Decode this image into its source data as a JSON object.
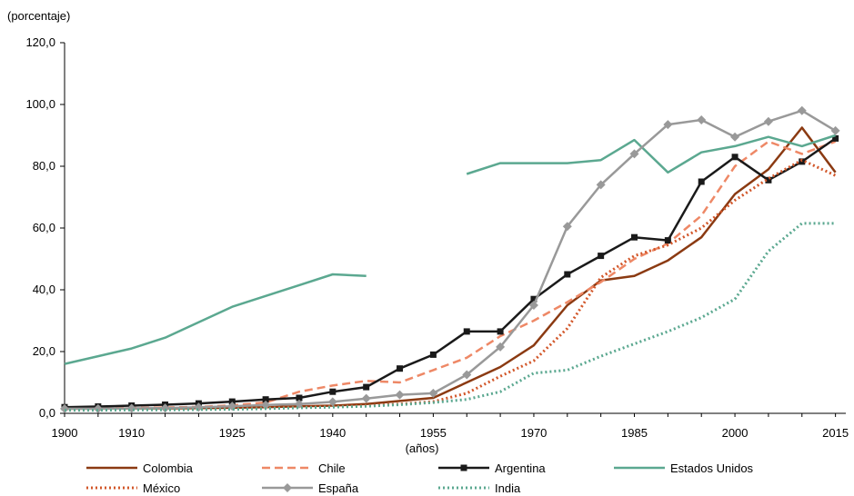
{
  "chart_data": {
    "type": "line",
    "ylabel": "(porcentaje)",
    "xlabel": "(años)",
    "ylim": [
      0,
      120
    ],
    "yticks": [
      "0,0",
      "20,0",
      "40,0",
      "60,0",
      "80,0",
      "100,0",
      "120,0"
    ],
    "xlim": [
      1900,
      2016
    ],
    "xticks": [
      "1900",
      "1910",
      "1925",
      "1940",
      "1955",
      "1970",
      "1985",
      "2000",
      "2015"
    ],
    "x": [
      1900,
      1905,
      1910,
      1915,
      1920,
      1925,
      1930,
      1935,
      1940,
      1945,
      1950,
      1955,
      1960,
      1965,
      1970,
      1975,
      1980,
      1985,
      1990,
      1995,
      2000,
      2005,
      2010,
      2015
    ],
    "grid": false,
    "legend_position": "bottom",
    "series": [
      {
        "name": "Colombia",
        "color": "#8B3A12",
        "dash": "solid",
        "marker": "none",
        "values": [
          1.5,
          1.5,
          1.6,
          1.6,
          1.7,
          1.8,
          2.0,
          2.3,
          2.5,
          3.0,
          4.0,
          5.0,
          10.0,
          15.0,
          22.0,
          35.0,
          43.0,
          44.5,
          49.5,
          57.0,
          71.0,
          79.0,
          92.5,
          78.0
        ]
      },
      {
        "name": "Chile",
        "color": "#EE8866",
        "dash": "dashed",
        "marker": "none",
        "values": [
          1.5,
          1.6,
          1.7,
          1.9,
          2.1,
          2.6,
          3.5,
          7.0,
          9.0,
          10.5,
          10.0,
          14.0,
          18.0,
          25.0,
          30.0,
          36.0,
          42.5,
          50.0,
          55.0,
          64.0,
          80.0,
          88.0,
          84.0,
          88.0
        ]
      },
      {
        "name": "Argentina",
        "color": "#1A1A1A",
        "dash": "solid",
        "marker": "square",
        "values": [
          2.0,
          2.2,
          2.5,
          2.8,
          3.2,
          3.8,
          4.5,
          5.0,
          7.0,
          8.5,
          14.5,
          19.0,
          26.5,
          26.5,
          37.0,
          45.0,
          51.0,
          57.0,
          56.0,
          75.0,
          83.0,
          75.5,
          81.5,
          89.0
        ]
      },
      {
        "name": "Estados Unidos",
        "color": "#5BA890",
        "dash": "solid",
        "marker": "none",
        "values": [
          16.0,
          18.5,
          21.0,
          24.5,
          29.5,
          34.5,
          38.0,
          41.5,
          45.0,
          44.5,
          null,
          null,
          77.5,
          81.0,
          81.0,
          81.0,
          82.0,
          88.5,
          78.0,
          84.5,
          86.5,
          89.5,
          86.5,
          90.0
        ]
      },
      {
        "name": "México",
        "color": "#D2572A",
        "dash": "dotted",
        "marker": "none",
        "values": [
          1.2,
          1.3,
          1.4,
          1.4,
          1.5,
          1.6,
          1.8,
          2.0,
          2.2,
          2.5,
          3.0,
          3.8,
          6.5,
          12.0,
          17.0,
          27.5,
          44.0,
          51.0,
          54.5,
          60.0,
          69.0,
          76.0,
          82.0,
          77.0
        ]
      },
      {
        "name": "España",
        "color": "#999999",
        "dash": "solid",
        "marker": "diamond",
        "values": [
          1.5,
          1.5,
          1.6,
          1.7,
          2.0,
          2.3,
          2.7,
          3.0,
          3.7,
          4.8,
          6.0,
          6.5,
          12.5,
          21.5,
          35.0,
          60.5,
          74.0,
          84.0,
          93.5,
          95.0,
          89.5,
          94.5,
          98.0,
          91.5
        ]
      },
      {
        "name": "India",
        "color": "#5BA890",
        "dash": "dotted",
        "marker": "none",
        "values": [
          1.0,
          1.0,
          1.1,
          1.1,
          1.2,
          1.3,
          1.5,
          1.8,
          2.0,
          2.3,
          2.8,
          3.5,
          4.5,
          7.0,
          13.0,
          14.0,
          18.5,
          22.5,
          26.5,
          31.0,
          37.0,
          52.5,
          61.5,
          61.5
        ]
      }
    ]
  }
}
